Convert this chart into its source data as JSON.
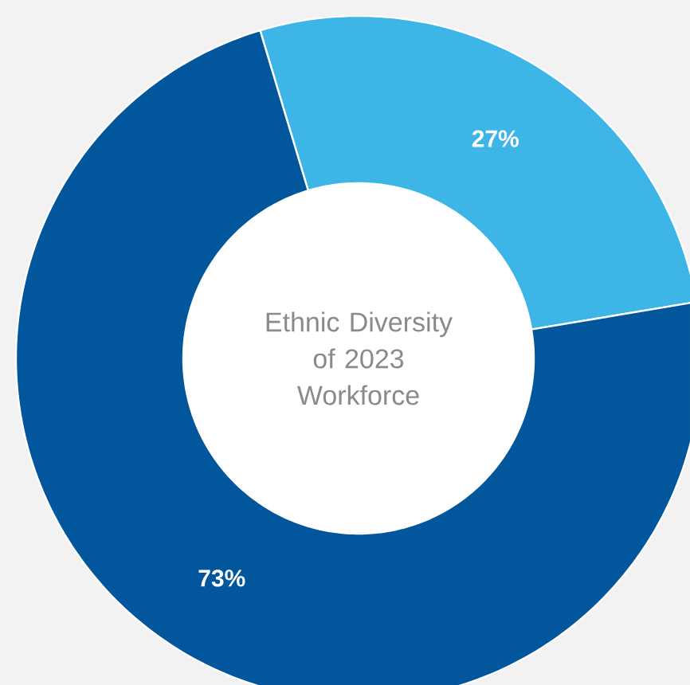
{
  "chart_data": {
    "type": "donut",
    "title": "Ethnic Diversity of 2023 Workforce",
    "categories": [
      null,
      null
    ],
    "values": [
      27,
      73
    ],
    "colors": [
      "#3db5e6",
      "#02569b"
    ],
    "value_labels": [
      "27%",
      "73%"
    ]
  }
}
